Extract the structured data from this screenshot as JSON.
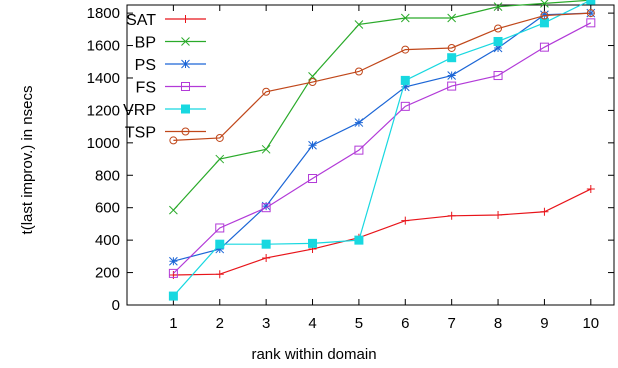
{
  "chart_data": {
    "type": "line",
    "xlabel": "rank within domain",
    "ylabel": "t(last improv.) in nsecs",
    "x": [
      1,
      2,
      3,
      4,
      5,
      6,
      7,
      8,
      9,
      10
    ],
    "xlim": [
      0,
      10.5
    ],
    "ylim": [
      0,
      1850
    ],
    "x_ticks": [
      1,
      2,
      3,
      4,
      5,
      6,
      7,
      8,
      9,
      10
    ],
    "y_ticks": [
      0,
      200,
      400,
      600,
      800,
      1000,
      1200,
      1400,
      1600,
      1800
    ],
    "grid": false,
    "legend_position": "top-left",
    "series": [
      {
        "name": "SAT",
        "color": "#e8141a",
        "marker": "plus",
        "values": [
          185,
          190,
          290,
          345,
          415,
          520,
          550,
          555,
          575,
          715
        ]
      },
      {
        "name": "BP",
        "color": "#2aaa2a",
        "marker": "cross",
        "values": [
          585,
          900,
          960,
          1410,
          1730,
          1770,
          1770,
          1840,
          1860,
          1880
        ]
      },
      {
        "name": "PS",
        "color": "#1c66d6",
        "marker": "star",
        "values": [
          270,
          345,
          610,
          985,
          1125,
          1345,
          1415,
          1585,
          1790,
          1800
        ]
      },
      {
        "name": "FS",
        "color": "#b23ad8",
        "marker": "square-open",
        "values": [
          195,
          475,
          600,
          780,
          955,
          1225,
          1350,
          1415,
          1590,
          1740
        ]
      },
      {
        "name": "VRP",
        "color": "#18d8e0",
        "marker": "square-filled",
        "values": [
          55,
          375,
          375,
          380,
          400,
          1385,
          1525,
          1625,
          1740,
          1880
        ]
      },
      {
        "name": "TSP",
        "color": "#c0471a",
        "marker": "circle-open",
        "values": [
          1015,
          1030,
          1315,
          1375,
          1440,
          1575,
          1585,
          1705,
          1785,
          1800
        ]
      }
    ]
  }
}
